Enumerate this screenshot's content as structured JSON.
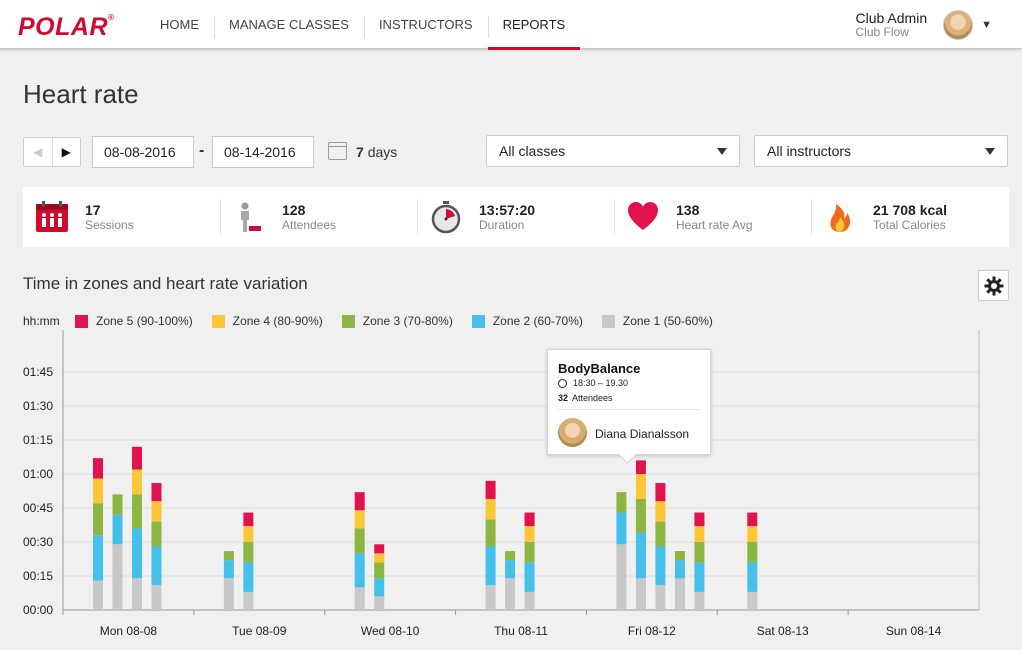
{
  "brand": {
    "logo_text": "POLAR",
    "accent": "#d10a2f"
  },
  "nav": [
    {
      "label": "HOME",
      "active": false
    },
    {
      "label": "MANAGE CLASSES",
      "active": false
    },
    {
      "label": "INSTRUCTORS",
      "active": false
    },
    {
      "label": "REPORTS",
      "active": true
    }
  ],
  "user": {
    "name": "Club Admin",
    "club": "Club Flow",
    "avatar_icon": "user-avatar"
  },
  "page": {
    "title": "Heart rate"
  },
  "filters": {
    "start_date": "08-08-2016",
    "end_date": "08-14-2016",
    "separator": "-",
    "days_value": "7",
    "days_unit": "days",
    "class_select": "All classes",
    "instructor_select": "All instructors"
  },
  "stats": [
    {
      "icon": "sessions-icon",
      "value": "17",
      "label": "Sessions"
    },
    {
      "icon": "attendees-icon",
      "value": "128",
      "label": "Attendees"
    },
    {
      "icon": "stopwatch-icon",
      "value": "13:57:20",
      "label": "Duration"
    },
    {
      "icon": "heart-icon",
      "value": "138",
      "label": "Heart rate Avg"
    },
    {
      "icon": "flame-icon",
      "value": "21 708 kcal",
      "label": "Total Calories"
    }
  ],
  "chart_section": {
    "title": "Time in zones and heart rate variation",
    "unit_label": "hh:mm"
  },
  "tooltip": {
    "title": "BodyBalance",
    "time": "18:30 – 19.30",
    "attendees_count": "32",
    "attendees_label": "Attendees",
    "instructor": "Diana Dianalsson"
  },
  "chart_data": {
    "type": "bar",
    "stacked": true,
    "unit": "minutes",
    "ylabel": "hh:mm",
    "ylim": [
      0,
      120
    ],
    "y_ticks": [
      "00:00",
      "00:15",
      "00:30",
      "00:45",
      "01:00",
      "01:15",
      "01:30",
      "01:45"
    ],
    "categories": [
      "Mon 08-08",
      "Tue 08-09",
      "Wed 08-10",
      "Thu 08-11",
      "Fri 08-12",
      "Sat 08-13",
      "Sun 08-14"
    ],
    "legend_position": "top-left",
    "grid": true,
    "series": [
      {
        "name": "Zone 1 (50-60%)",
        "color": "#c8c8c8"
      },
      {
        "name": "Zone 2 (60-70%)",
        "color": "#44c0ea"
      },
      {
        "name": "Zone 3 (70-80%)",
        "color": "#8db542"
      },
      {
        "name": "Zone 4 (80-90%)",
        "color": "#fcc636"
      },
      {
        "name": "Zone 5 (90-100%)",
        "color": "#e0134f"
      }
    ],
    "legend_order": [
      "Zone 5 (90-100%)",
      "Zone 4 (80-90%)",
      "Zone 3 (70-80%)",
      "Zone 2 (60-70%)",
      "Zone 1 (50-60%)"
    ],
    "sessions": [
      {
        "day": "Mon 08-08",
        "zones": [
          13,
          20,
          14,
          11,
          9
        ]
      },
      {
        "day": "Mon 08-08",
        "zones": [
          29,
          13,
          9,
          0,
          0
        ]
      },
      {
        "day": "Mon 08-08",
        "zones": [
          14,
          22,
          15,
          11,
          10
        ]
      },
      {
        "day": "Mon 08-08",
        "zones": [
          11,
          17,
          11,
          9,
          8
        ]
      },
      {
        "day": "Tue 08-09",
        "zones": [
          14,
          8,
          4,
          0,
          0
        ]
      },
      {
        "day": "Tue 08-09",
        "zones": [
          8,
          13,
          9,
          7,
          6
        ]
      },
      {
        "day": "Wed 08-10",
        "zones": [
          10,
          15,
          11,
          8,
          8
        ]
      },
      {
        "day": "Wed 08-10",
        "zones": [
          6,
          8,
          7,
          4,
          4
        ]
      },
      {
        "day": "Thu 08-11",
        "zones": [
          11,
          17,
          12,
          9,
          8
        ]
      },
      {
        "day": "Thu 08-11",
        "zones": [
          14,
          8,
          4,
          0,
          0
        ]
      },
      {
        "day": "Thu 08-11",
        "zones": [
          8,
          13,
          9,
          7,
          6
        ]
      },
      {
        "day": "Fri 08-12",
        "zones": [
          29,
          14,
          9,
          0,
          0
        ]
      },
      {
        "day": "Fri 08-12",
        "zones": [
          14,
          20,
          15,
          11,
          6
        ]
      },
      {
        "day": "Fri 08-12",
        "zones": [
          11,
          17,
          11,
          9,
          8
        ]
      },
      {
        "day": "Fri 08-12",
        "zones": [
          14,
          8,
          4,
          0,
          0
        ]
      },
      {
        "day": "Fri 08-12",
        "zones": [
          8,
          13,
          9,
          7,
          6
        ]
      },
      {
        "day": "Sat 08-13",
        "zones": [
          8,
          13,
          9,
          7,
          6
        ]
      }
    ]
  }
}
